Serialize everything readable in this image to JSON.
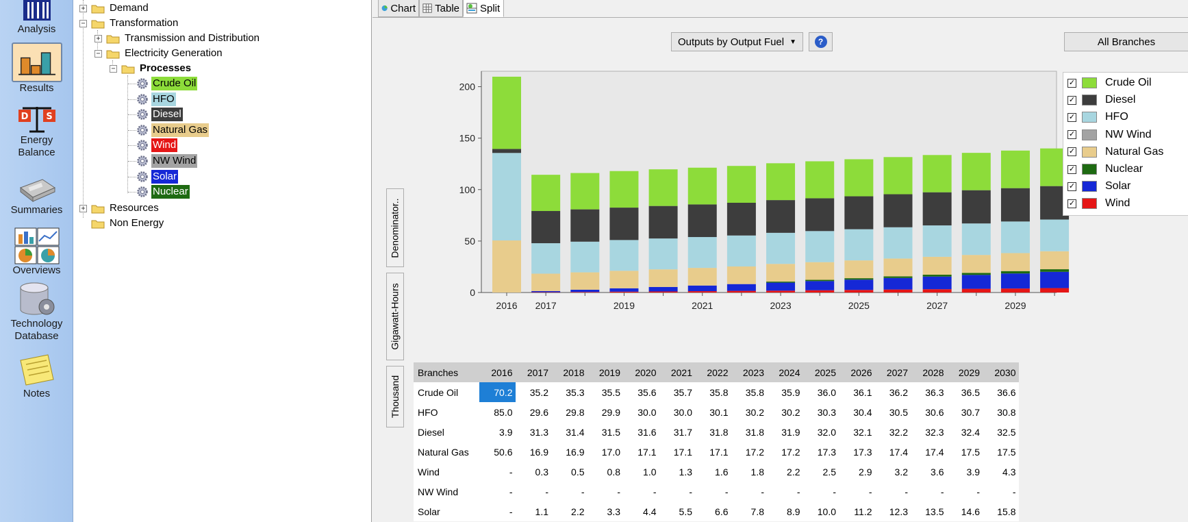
{
  "nav": [
    {
      "key": "analysis",
      "label": "Analysis",
      "icon": "analysis-icon",
      "selected": false
    },
    {
      "key": "results",
      "label": "Results",
      "icon": "results-chart-icon",
      "selected": true
    },
    {
      "key": "energy-balance",
      "label1": "Energy",
      "label2": "Balance",
      "icon": "energy-balance-icon",
      "selected": false
    },
    {
      "key": "summaries",
      "label": "Summaries",
      "icon": "summaries-icon",
      "selected": false
    },
    {
      "key": "overviews",
      "label": "Overviews",
      "icon": "overviews-icon",
      "selected": false
    },
    {
      "key": "technology-database",
      "label1": "Technology",
      "label2": "Database",
      "icon": "database-gear-icon",
      "selected": false
    },
    {
      "key": "notes",
      "label": "Notes",
      "icon": "notes-icon",
      "selected": false
    }
  ],
  "tree": {
    "demand": "Demand",
    "transformation": "Transformation",
    "transmission": "Transmission and Distribution",
    "electricity": "Electricity Generation",
    "processes": "Processes",
    "items": [
      {
        "label": "Crude Oil",
        "bg": "#8ddc3a",
        "fg": "#000000"
      },
      {
        "label": "HFO",
        "bg": "#a8d6e0",
        "fg": "#000000"
      },
      {
        "label": "Diesel",
        "bg": "#3d3d3d",
        "fg": "#ffffff"
      },
      {
        "label": "Natural Gas",
        "bg": "#e8cc8c",
        "fg": "#000000"
      },
      {
        "label": "Wind",
        "bg": "#e51616",
        "fg": "#ffffff"
      },
      {
        "label": "NW Wind",
        "bg": "#a3a3a3",
        "fg": "#000000"
      },
      {
        "label": "Solar",
        "bg": "#1528d6",
        "fg": "#ffffff"
      },
      {
        "label": "Nuclear",
        "bg": "#1e6a12",
        "fg": "#ffffff"
      }
    ],
    "resources": "Resources",
    "non_energy": "Non Energy"
  },
  "tabs": {
    "chart": "Chart",
    "table": "Table",
    "split": "Split"
  },
  "toolbar": {
    "outputs_dropdown": "Outputs by Output Fuel",
    "help": "?",
    "branches": "All Branches"
  },
  "side_tabs": {
    "denominator": "Denominator..",
    "unit": "Gigawatt-Hours",
    "scale": "Thousand"
  },
  "chart_data": {
    "type": "bar",
    "stacked": true,
    "categories": [
      "2016",
      "2017",
      "2018",
      "2019",
      "2020",
      "2021",
      "2022",
      "2023",
      "2024",
      "2025",
      "2026",
      "2027",
      "2028",
      "2029",
      "2030"
    ],
    "xtick_labels": [
      "2016",
      "2017",
      "",
      "2019",
      "",
      "2021",
      "",
      "2023",
      "",
      "2025",
      "",
      "2027",
      "",
      "2029",
      ""
    ],
    "ylim": [
      0,
      215
    ],
    "yticks": [
      0,
      50,
      100,
      150,
      200
    ],
    "grid": false,
    "legend_position": "right",
    "series": [
      {
        "name": "Wind",
        "color": "#e51616",
        "values": [
          0,
          0.3,
          0.5,
          0.8,
          1.0,
          1.3,
          1.6,
          1.8,
          2.2,
          2.5,
          2.9,
          3.2,
          3.6,
          3.9,
          4.3
        ]
      },
      {
        "name": "Solar",
        "color": "#1528d6",
        "values": [
          0,
          1.1,
          2.2,
          3.3,
          4.4,
          5.5,
          6.6,
          7.8,
          8.9,
          10.0,
          11.2,
          12.3,
          13.5,
          14.6,
          15.8
        ]
      },
      {
        "name": "Nuclear",
        "color": "#1e6a12",
        "values": [
          0,
          0,
          0,
          0,
          0,
          0,
          0,
          1.0,
          1.2,
          1.4,
          1.6,
          1.8,
          2.0,
          2.3,
          2.5
        ]
      },
      {
        "name": "Natural Gas",
        "color": "#e8cc8c",
        "values": [
          50.6,
          16.9,
          16.9,
          17.0,
          17.1,
          17.1,
          17.1,
          17.2,
          17.2,
          17.3,
          17.3,
          17.4,
          17.4,
          17.5,
          17.5
        ]
      },
      {
        "name": "NW Wind",
        "color": "#a3a3a3",
        "values": [
          0,
          0,
          0,
          0,
          0,
          0,
          0,
          0,
          0,
          0,
          0,
          0,
          0,
          0,
          0
        ]
      },
      {
        "name": "HFO",
        "color": "#a8d6e0",
        "values": [
          85.0,
          29.6,
          29.8,
          29.9,
          30.0,
          30.0,
          30.1,
          30.2,
          30.2,
          30.3,
          30.4,
          30.5,
          30.6,
          30.7,
          30.8
        ]
      },
      {
        "name": "Diesel",
        "color": "#3d3d3d",
        "values": [
          3.9,
          31.3,
          31.4,
          31.5,
          31.6,
          31.7,
          31.8,
          31.8,
          31.9,
          32.0,
          32.1,
          32.2,
          32.3,
          32.4,
          32.5
        ]
      },
      {
        "name": "Crude Oil",
        "color": "#8ddc3a",
        "values": [
          70.2,
          35.2,
          35.3,
          35.5,
          35.6,
          35.7,
          35.8,
          35.8,
          35.9,
          36.0,
          36.1,
          36.2,
          36.3,
          36.5,
          36.6
        ]
      }
    ]
  },
  "legend": [
    {
      "label": "Crude Oil",
      "color": "#8ddc3a",
      "checked": true
    },
    {
      "label": "Diesel",
      "color": "#3d3d3d",
      "checked": true
    },
    {
      "label": "HFO",
      "color": "#a8d6e0",
      "checked": true
    },
    {
      "label": "NW Wind",
      "color": "#a3a3a3",
      "checked": true
    },
    {
      "label": "Natural Gas",
      "color": "#e8cc8c",
      "checked": true
    },
    {
      "label": "Nuclear",
      "color": "#1e6a12",
      "checked": true
    },
    {
      "label": "Solar",
      "color": "#1528d6",
      "checked": true
    },
    {
      "label": "Wind",
      "color": "#e51616",
      "checked": true
    }
  ],
  "table": {
    "header": "Branches",
    "years": [
      "2016",
      "2017",
      "2018",
      "2019",
      "2020",
      "2021",
      "2022",
      "2023",
      "2024",
      "2025",
      "2026",
      "2027",
      "2028",
      "2029",
      "2030"
    ],
    "rows": [
      {
        "name": "Crude Oil",
        "values": [
          "70.2",
          "35.2",
          "35.3",
          "35.5",
          "35.6",
          "35.7",
          "35.8",
          "35.8",
          "35.9",
          "36.0",
          "36.1",
          "36.2",
          "36.3",
          "36.5",
          "36.6"
        ]
      },
      {
        "name": "HFO",
        "values": [
          "85.0",
          "29.6",
          "29.8",
          "29.9",
          "30.0",
          "30.0",
          "30.1",
          "30.2",
          "30.2",
          "30.3",
          "30.4",
          "30.5",
          "30.6",
          "30.7",
          "30.8"
        ]
      },
      {
        "name": "Diesel",
        "values": [
          "3.9",
          "31.3",
          "31.4",
          "31.5",
          "31.6",
          "31.7",
          "31.8",
          "31.8",
          "31.9",
          "32.0",
          "32.1",
          "32.2",
          "32.3",
          "32.4",
          "32.5"
        ]
      },
      {
        "name": "Natural Gas",
        "values": [
          "50.6",
          "16.9",
          "16.9",
          "17.0",
          "17.1",
          "17.1",
          "17.1",
          "17.2",
          "17.2",
          "17.3",
          "17.3",
          "17.4",
          "17.4",
          "17.5",
          "17.5"
        ]
      },
      {
        "name": "Wind",
        "values": [
          "-",
          "0.3",
          "0.5",
          "0.8",
          "1.0",
          "1.3",
          "1.6",
          "1.8",
          "2.2",
          "2.5",
          "2.9",
          "3.2",
          "3.6",
          "3.9",
          "4.3"
        ]
      },
      {
        "name": "NW Wind",
        "values": [
          "-",
          "-",
          "-",
          "-",
          "-",
          "-",
          "-",
          "-",
          "-",
          "-",
          "-",
          "-",
          "-",
          "-",
          "-"
        ]
      },
      {
        "name": "Solar",
        "values": [
          "-",
          "1.1",
          "2.2",
          "3.3",
          "4.4",
          "5.5",
          "6.6",
          "7.8",
          "8.9",
          "10.0",
          "11.2",
          "12.3",
          "13.5",
          "14.6",
          "15.8"
        ]
      }
    ]
  }
}
